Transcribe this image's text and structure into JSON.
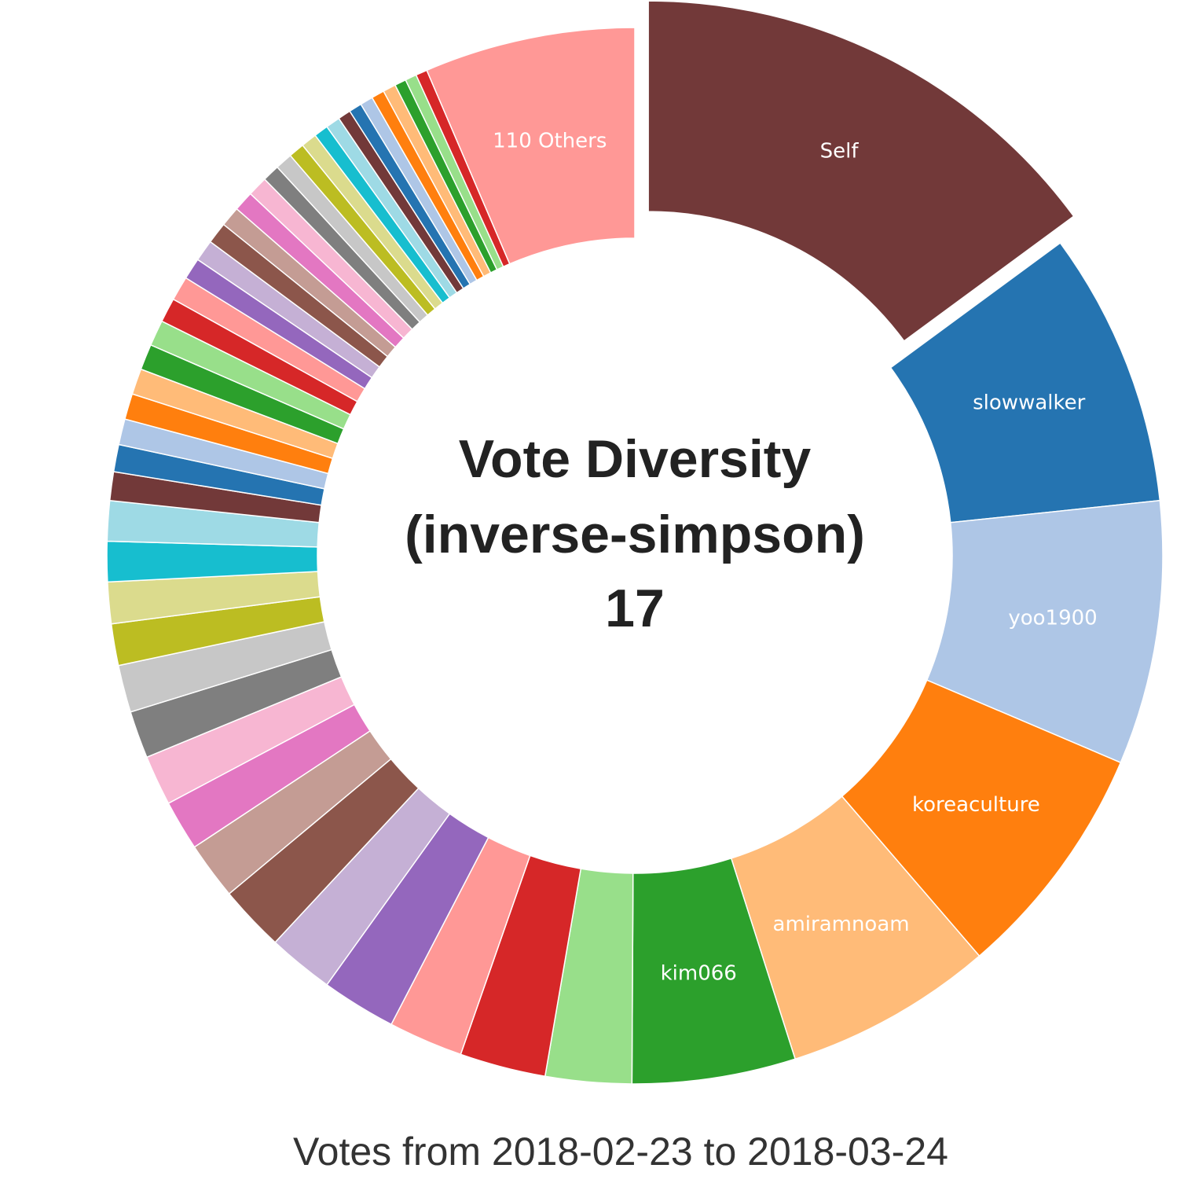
{
  "chart_data": {
    "type": "pie",
    "variant": "donut",
    "center_title": [
      "Vote Diversity",
      "(inverse-simpson)",
      "17"
    ],
    "footer": "Votes from 2018-02-23 to 2018-03-24",
    "exploded_slice": "Self",
    "slices": [
      {
        "label": "Self",
        "value": 17.0,
        "color": "#723939",
        "show_label": true
      },
      {
        "label": "slowwalker",
        "value": 9.6,
        "color": "#2574b1",
        "show_label": true
      },
      {
        "label": "yoo1900",
        "value": 9.2,
        "color": "#aec6e6",
        "show_label": true
      },
      {
        "label": "koreaculture",
        "value": 8.3,
        "color": "#ff7f0e",
        "show_label": true
      },
      {
        "label": "amiramnoam",
        "value": 7.3,
        "color": "#ffbb78",
        "show_label": true
      },
      {
        "label": "kim066",
        "value": 5.7,
        "color": "#2ca02c",
        "show_label": true
      },
      {
        "label": "",
        "value": 3.0,
        "color": "#98df8a",
        "show_label": false
      },
      {
        "label": "",
        "value": 3.0,
        "color": "#d62728",
        "show_label": false
      },
      {
        "label": "",
        "value": 2.6,
        "color": "#ff9896",
        "show_label": false
      },
      {
        "label": "",
        "value": 2.6,
        "color": "#9467bd",
        "show_label": false
      },
      {
        "label": "",
        "value": 2.3,
        "color": "#c5b0d5",
        "show_label": false
      },
      {
        "label": "",
        "value": 2.3,
        "color": "#8c564b",
        "show_label": false
      },
      {
        "label": "",
        "value": 2.0,
        "color": "#c49c94",
        "show_label": false
      },
      {
        "label": "",
        "value": 1.75,
        "color": "#e377c2",
        "show_label": false
      },
      {
        "label": "",
        "value": 1.75,
        "color": "#f7b6d2",
        "show_label": false
      },
      {
        "label": "",
        "value": 1.65,
        "color": "#7f7f7f",
        "show_label": false
      },
      {
        "label": "",
        "value": 1.65,
        "color": "#c7c7c7",
        "show_label": false
      },
      {
        "label": "",
        "value": 1.45,
        "color": "#bcbd22",
        "show_label": false
      },
      {
        "label": "",
        "value": 1.45,
        "color": "#dbdb8d",
        "show_label": false
      },
      {
        "label": "",
        "value": 1.4,
        "color": "#17becf",
        "show_label": false
      },
      {
        "label": "",
        "value": 1.4,
        "color": "#9edae5",
        "show_label": false
      },
      {
        "label": "",
        "value": 1.0,
        "color": "#723939",
        "show_label": false
      },
      {
        "label": "",
        "value": 0.95,
        "color": "#2574b1",
        "show_label": false
      },
      {
        "label": "",
        "value": 0.9,
        "color": "#aec6e6",
        "show_label": false
      },
      {
        "label": "",
        "value": 0.9,
        "color": "#ff7f0e",
        "show_label": false
      },
      {
        "label": "",
        "value": 0.9,
        "color": "#ffbb78",
        "show_label": false
      },
      {
        "label": "",
        "value": 0.9,
        "color": "#2ca02c",
        "show_label": false
      },
      {
        "label": "",
        "value": 0.9,
        "color": "#98df8a",
        "show_label": false
      },
      {
        "label": "",
        "value": 0.85,
        "color": "#d62728",
        "show_label": false
      },
      {
        "label": "",
        "value": 0.85,
        "color": "#ff9896",
        "show_label": false
      },
      {
        "label": "",
        "value": 0.75,
        "color": "#9467bd",
        "show_label": false
      },
      {
        "label": "",
        "value": 0.75,
        "color": "#c5b0d5",
        "show_label": false
      },
      {
        "label": "",
        "value": 0.75,
        "color": "#8c564b",
        "show_label": false
      },
      {
        "label": "",
        "value": 0.7,
        "color": "#c49c94",
        "show_label": false
      },
      {
        "label": "",
        "value": 0.7,
        "color": "#e377c2",
        "show_label": false
      },
      {
        "label": "",
        "value": 0.7,
        "color": "#f7b6d2",
        "show_label": false
      },
      {
        "label": "",
        "value": 0.6,
        "color": "#7f7f7f",
        "show_label": false
      },
      {
        "label": "",
        "value": 0.6,
        "color": "#c7c7c7",
        "show_label": false
      },
      {
        "label": "",
        "value": 0.55,
        "color": "#bcbd22",
        "show_label": false
      },
      {
        "label": "",
        "value": 0.55,
        "color": "#dbdb8d",
        "show_label": false
      },
      {
        "label": "",
        "value": 0.5,
        "color": "#17becf",
        "show_label": false
      },
      {
        "label": "",
        "value": 0.5,
        "color": "#9edae5",
        "show_label": false
      },
      {
        "label": "",
        "value": 0.45,
        "color": "#723939",
        "show_label": false
      },
      {
        "label": "",
        "value": 0.45,
        "color": "#2574b1",
        "show_label": false
      },
      {
        "label": "",
        "value": 0.45,
        "color": "#aec6e6",
        "show_label": false
      },
      {
        "label": "",
        "value": 0.45,
        "color": "#ff7f0e",
        "show_label": false
      },
      {
        "label": "",
        "value": 0.45,
        "color": "#ffbb78",
        "show_label": false
      },
      {
        "label": "",
        "value": 0.4,
        "color": "#2ca02c",
        "show_label": false
      },
      {
        "label": "",
        "value": 0.4,
        "color": "#98df8a",
        "show_label": false
      },
      {
        "label": "",
        "value": 0.4,
        "color": "#d62728",
        "show_label": false
      },
      {
        "label": "110 Others",
        "value": 7.35,
        "color": "#ff9896",
        "show_label": true
      }
    ]
  }
}
